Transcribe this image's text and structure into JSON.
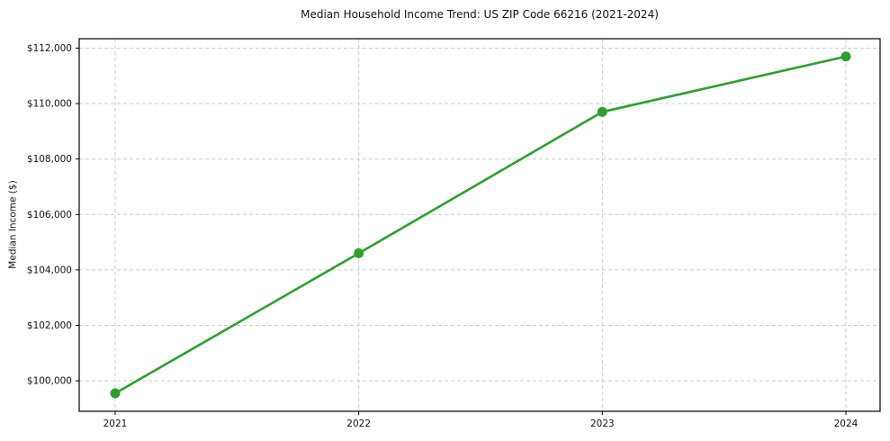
{
  "chart_data": {
    "type": "line",
    "title": "Median Household Income Trend: US ZIP Code 66216 (2021-2024)",
    "xlabel": "",
    "ylabel": "Median Income ($)",
    "categories": [
      "2021",
      "2022",
      "2023",
      "2024"
    ],
    "series": [
      {
        "name": "Median Household Income",
        "values": [
          99550,
          104600,
          109700,
          111700
        ]
      }
    ],
    "ylim": [
      98900,
      112340
    ],
    "yticks": [
      100000,
      102000,
      104000,
      106000,
      108000,
      110000,
      112000
    ],
    "ytick_labels": [
      "$100,000",
      "$102,000",
      "$104,000",
      "$106,000",
      "$108,000",
      "$110,000",
      "$112,000"
    ],
    "xtick_labels": [
      "2021",
      "2022",
      "2023",
      "2024"
    ],
    "grid": true,
    "grid_style": "dashed",
    "legend": false,
    "colors": {
      "line": "#2ca02c",
      "marker": "#2ca02c",
      "grid": "#cccccc",
      "frame": "#000000",
      "text": "#111111",
      "background": "#ffffff"
    }
  }
}
